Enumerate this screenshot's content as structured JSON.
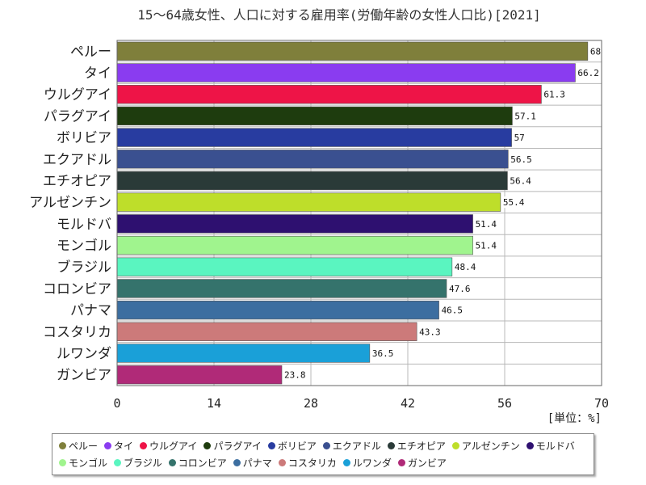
{
  "chart_data": {
    "type": "bar",
    "orientation": "horizontal",
    "title": "15～64歳女性、人口に対する雇用率(労働年齢の女性人口比)[2021]",
    "unit_label": "[単位：%]",
    "xlim": [
      0,
      70
    ],
    "xticks": [
      "0",
      "14",
      "28",
      "42",
      "56",
      "70"
    ],
    "grid": true,
    "legend_position": "bottom",
    "categories": [
      "ペルー",
      "タイ",
      "ウルグアイ",
      "パラグアイ",
      "ボリビア",
      "エクアドル",
      "エチオピア",
      "アルゼンチン",
      "モルドバ",
      "モンゴル",
      "ブラジル",
      "コロンビア",
      "パナマ",
      "コスタリカ",
      "ルワンダ",
      "ガンビア"
    ],
    "values": [
      68,
      66.2,
      61.3,
      57.1,
      57,
      56.5,
      56.4,
      55.4,
      51.4,
      51.4,
      48.4,
      47.6,
      46.5,
      43.3,
      36.5,
      23.8
    ],
    "value_labels": [
      "68",
      "66.2",
      "61.3",
      "57.1",
      "57",
      "56.5",
      "56.4",
      "55.4",
      "51.4",
      "51.4",
      "48.4",
      "47.6",
      "46.5",
      "43.3",
      "36.5",
      "23.8"
    ],
    "colors": [
      "#7f7f3b",
      "#8a3cf0",
      "#ee1447",
      "#1e3c0e",
      "#283ca0",
      "#3a5090",
      "#2a3a38",
      "#bede2a",
      "#2e1070",
      "#a0f48e",
      "#5af5c0",
      "#35736c",
      "#3c6ea0",
      "#cc7a7a",
      "#1aa0d8",
      "#b02a78"
    ]
  }
}
